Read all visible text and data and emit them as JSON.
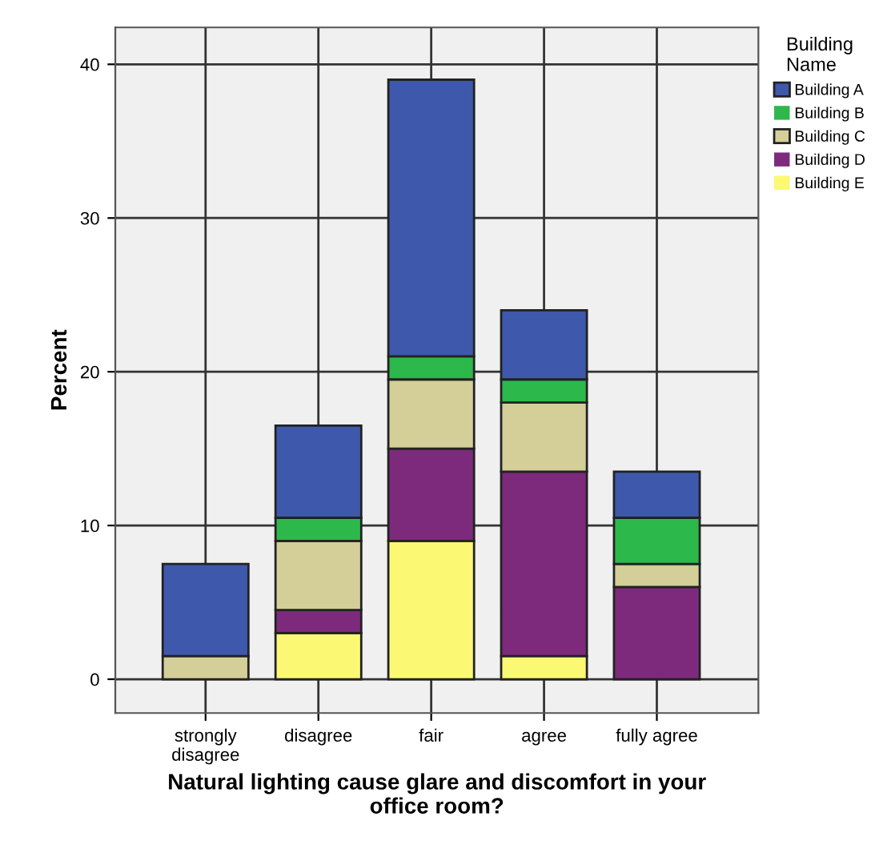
{
  "chart_data": {
    "type": "bar",
    "stacked": true,
    "xlabel": "Natural lighting cause glare and discomfort in your\noffice room?",
    "ylabel": "Percent",
    "legend_title": "Building\nName",
    "legend": "right",
    "grid": true,
    "categories": [
      "strongly\ndisagree",
      "disagree",
      "fair",
      "agree",
      "fully agree"
    ],
    "ylim": [
      -2.2,
      42.4
    ],
    "yticks": [
      0,
      10,
      20,
      30,
      40
    ],
    "series": [
      {
        "name": "Building E",
        "color": "#fbf873",
        "values": [
          0,
          3.0,
          9.0,
          1.5,
          0
        ]
      },
      {
        "name": "Building D",
        "color": "#7d2a7c",
        "values": [
          0,
          1.5,
          6.0,
          12.0,
          6.0
        ]
      },
      {
        "name": "Building C",
        "color": "#d4cf99",
        "values": [
          1.5,
          4.5,
          4.5,
          4.5,
          1.5
        ]
      },
      {
        "name": "Building B",
        "color": "#2db84b",
        "values": [
          0,
          1.5,
          1.5,
          1.5,
          3.0
        ]
      },
      {
        "name": "Building A",
        "color": "#3e58ac",
        "values": [
          6.0,
          6.0,
          18.0,
          4.5,
          3.0
        ]
      }
    ]
  }
}
